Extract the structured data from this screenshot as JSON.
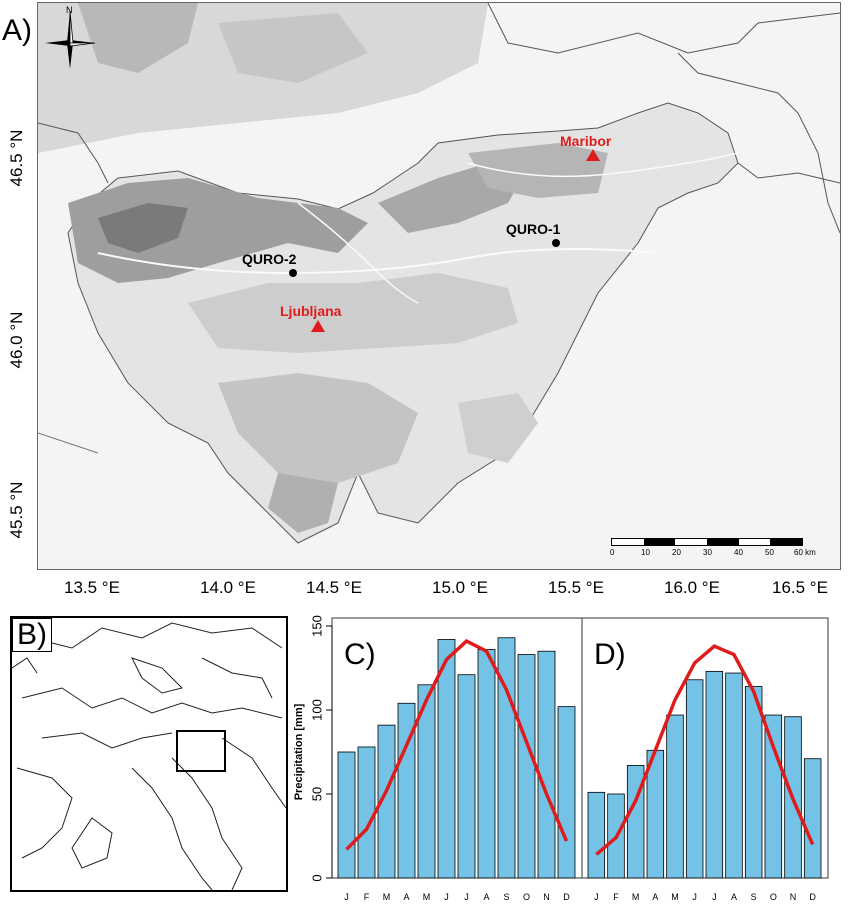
{
  "panels": {
    "a": "A)",
    "b": "B)",
    "c": "C)",
    "d": "D)"
  },
  "north_label": "N",
  "latitude_labels": [
    "46.5 °N",
    "46.0 °N",
    "45.5 °N"
  ],
  "longitude_labels": [
    "13.5 °E",
    "14.0 °E",
    "14.5 °E",
    "15.0 °E",
    "15.5 °E",
    "16.0 °E",
    "16.5 °E"
  ],
  "stations": [
    {
      "name": "QURO-1"
    },
    {
      "name": "QURO-2"
    }
  ],
  "cities": [
    {
      "name": "Maribor"
    },
    {
      "name": "Ljubljana"
    }
  ],
  "scale_bar": {
    "labels": [
      "0",
      "10",
      "20",
      "30",
      "40",
      "50",
      "60 km"
    ]
  },
  "colors": {
    "city": "#e01b1b",
    "bar": "#74c3e6",
    "curve": "#e01b1b"
  },
  "chart_data": [
    {
      "type": "bar",
      "panel": "C)",
      "categories": [
        "J",
        "F",
        "M",
        "A",
        "M",
        "J",
        "J",
        "A",
        "S",
        "O",
        "N",
        "D"
      ],
      "series": [
        {
          "type": "bar",
          "values": [
            75,
            78,
            91,
            104,
            115,
            142,
            121,
            136,
            143,
            133,
            135,
            102
          ]
        },
        {
          "type": "line",
          "values": [
            17,
            29,
            52,
            79,
            106,
            130,
            141,
            135,
            112,
            81,
            50,
            22
          ]
        }
      ],
      "ylabel": "Precipitation [mm]",
      "ylim": [
        0,
        150
      ],
      "yticks": [
        0,
        50,
        100,
        150
      ]
    },
    {
      "type": "bar",
      "panel": "D)",
      "categories": [
        "J",
        "F",
        "M",
        "A",
        "M",
        "J",
        "J",
        "A",
        "S",
        "O",
        "N",
        "D"
      ],
      "series": [
        {
          "type": "bar",
          "values": [
            51,
            50,
            67,
            76,
            97,
            118,
            123,
            122,
            114,
            97,
            96,
            71
          ]
        },
        {
          "type": "line",
          "values": [
            14,
            24,
            46,
            76,
            106,
            128,
            138,
            133,
            111,
            78,
            47,
            20
          ]
        }
      ],
      "ylim": [
        0,
        150
      ]
    }
  ]
}
